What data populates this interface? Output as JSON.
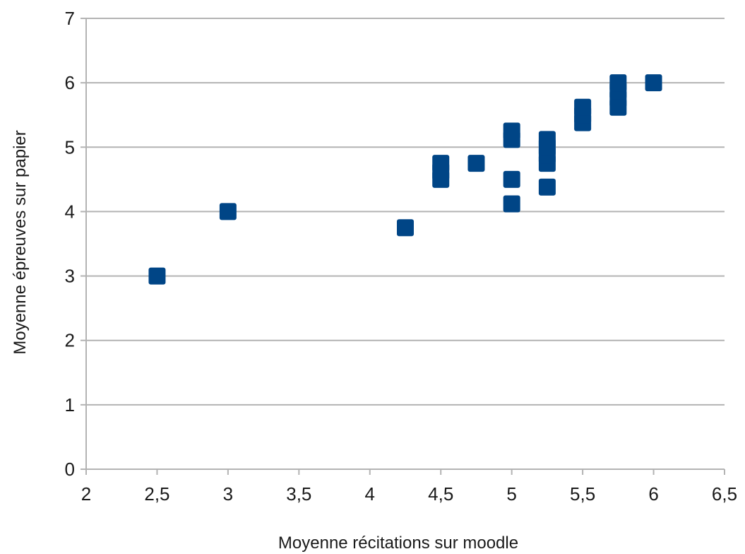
{
  "chart_data": {
    "type": "scatter",
    "title": "",
    "xlabel": "Moyenne récitations sur moodle",
    "ylabel": "Moyenne épreuves sur papier",
    "xlim": [
      2,
      6.5
    ],
    "ylim": [
      0,
      7
    ],
    "x_ticks": [
      2,
      2.5,
      3,
      3.5,
      4,
      4.5,
      5,
      5.5,
      6,
      6.5
    ],
    "x_tick_labels": [
      "2",
      "2,5",
      "3",
      "3,5",
      "4",
      "4,5",
      "5",
      "5,5",
      "6",
      "6,5"
    ],
    "y_ticks": [
      0,
      1,
      2,
      3,
      4,
      5,
      6,
      7
    ],
    "y_tick_labels": [
      "0",
      "1",
      "2",
      "3",
      "4",
      "5",
      "6",
      "7"
    ],
    "grid": "horizontal",
    "legend": "none",
    "marker": "square",
    "colors": {
      "marker": "#004586",
      "grid": "#b3b3b3",
      "axis": "#b3b3b3"
    },
    "series": [
      {
        "points": [
          {
            "x": 2.5,
            "y": 3.0
          },
          {
            "x": 3.0,
            "y": 4.0
          },
          {
            "x": 4.25,
            "y": 3.75
          },
          {
            "x": 4.5,
            "y": 4.5
          },
          {
            "x": 4.5,
            "y": 4.62
          },
          {
            "x": 4.5,
            "y": 4.75
          },
          {
            "x": 4.75,
            "y": 4.75
          },
          {
            "x": 5.0,
            "y": 4.12
          },
          {
            "x": 5.0,
            "y": 4.5
          },
          {
            "x": 5.0,
            "y": 5.12
          },
          {
            "x": 5.0,
            "y": 5.25
          },
          {
            "x": 5.25,
            "y": 4.38
          },
          {
            "x": 5.25,
            "y": 4.75
          },
          {
            "x": 5.25,
            "y": 4.88
          },
          {
            "x": 5.25,
            "y": 5.0
          },
          {
            "x": 5.25,
            "y": 5.12
          },
          {
            "x": 5.5,
            "y": 5.38
          },
          {
            "x": 5.5,
            "y": 5.5
          },
          {
            "x": 5.5,
            "y": 5.62
          },
          {
            "x": 5.75,
            "y": 5.62
          },
          {
            "x": 5.75,
            "y": 5.75
          },
          {
            "x": 5.75,
            "y": 5.88
          },
          {
            "x": 5.75,
            "y": 6.0
          },
          {
            "x": 6.0,
            "y": 6.0
          }
        ]
      }
    ]
  }
}
